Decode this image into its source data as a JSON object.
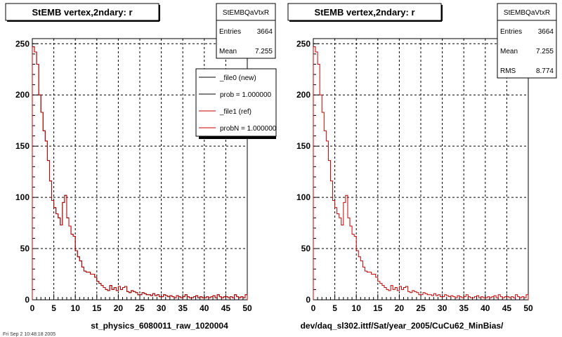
{
  "chart_data": [
    {
      "type": "bar",
      "title": "StEMB  vertex,2ndary: r",
      "xlabel": "st_physics_6080011_raw_1020004",
      "ylabel": "",
      "xlim": [
        0,
        50
      ],
      "ylim": [
        0,
        255
      ],
      "grid": true,
      "x_ticks": [
        "0",
        "5",
        "10",
        "15",
        "20",
        "25",
        "30",
        "35",
        "40",
        "45",
        "50"
      ],
      "y_ticks": [
        "0",
        "50",
        "100",
        "150",
        "200",
        "250"
      ],
      "bin_width": 0.5,
      "stats": {
        "name": "StEMBQaVtxR",
        "rows": [
          {
            "label": "Entries",
            "value": "3664"
          },
          {
            "label": "Mean",
            "value": "7.255"
          }
        ]
      },
      "legend": {
        "placement": "top-right",
        "entries": [
          {
            "label": "_file0 (new)",
            "color": "#000000"
          },
          {
            "label": "prob = 1.000000",
            "color": "#000000"
          },
          {
            "label": "_file1 (ref)",
            "color": "#cc0000"
          },
          {
            "label": "probN = 1.000000",
            "color": "#cc0000"
          }
        ]
      },
      "series": [
        {
          "color": "#000000",
          "values": [
            247,
            242,
            230,
            200,
            183,
            165,
            155,
            136,
            116,
            97,
            90,
            84,
            80,
            73,
            95,
            102,
            80,
            72,
            64,
            62,
            48,
            42,
            38,
            32,
            28,
            27,
            27,
            25,
            25,
            22,
            18,
            16,
            14,
            12,
            10,
            9,
            14,
            10,
            12,
            9,
            13,
            10,
            12,
            13,
            8,
            7,
            9,
            8,
            7,
            5,
            5,
            7,
            6,
            5,
            5,
            4,
            6,
            4,
            5,
            3,
            3,
            5,
            4,
            3,
            4,
            3,
            2,
            4,
            3,
            2,
            3,
            5,
            3,
            2,
            2,
            3,
            4,
            2,
            3,
            2,
            2,
            3,
            2,
            3,
            4,
            2,
            5,
            3,
            2,
            3,
            3,
            2,
            3,
            2,
            5,
            3,
            2,
            3,
            2,
            5
          ]
        },
        {
          "color": "#cc0000",
          "values": [
            247,
            242,
            230,
            200,
            183,
            165,
            155,
            136,
            116,
            97,
            90,
            84,
            80,
            73,
            95,
            102,
            80,
            72,
            64,
            62,
            48,
            42,
            38,
            32,
            28,
            27,
            27,
            25,
            25,
            22,
            18,
            16,
            14,
            12,
            10,
            9,
            14,
            10,
            12,
            9,
            13,
            10,
            12,
            13,
            8,
            7,
            9,
            8,
            7,
            5,
            5,
            7,
            6,
            5,
            5,
            4,
            6,
            4,
            5,
            3,
            3,
            5,
            4,
            3,
            4,
            3,
            2,
            4,
            3,
            2,
            3,
            5,
            3,
            2,
            2,
            3,
            4,
            2,
            3,
            2,
            2,
            3,
            2,
            3,
            4,
            2,
            5,
            3,
            2,
            3,
            3,
            2,
            3,
            2,
            5,
            3,
            2,
            3,
            2,
            5
          ]
        }
      ]
    },
    {
      "type": "bar",
      "title": "StEMB  vertex,2ndary: r",
      "xlabel": "dev/daq_sl302.ittf/Sat/year_2005/CuCu62_MinBias/",
      "ylabel": "",
      "xlim": [
        0,
        50
      ],
      "ylim": [
        0,
        255
      ],
      "grid": true,
      "x_ticks": [
        "0",
        "5",
        "10",
        "15",
        "20",
        "25",
        "30",
        "35",
        "40",
        "45",
        "50"
      ],
      "y_ticks": [
        "0",
        "50",
        "100",
        "150",
        "200",
        "250"
      ],
      "bin_width": 0.5,
      "stats": {
        "name": "StEMBQaVtxR",
        "rows": [
          {
            "label": "Entries",
            "value": "3664"
          },
          {
            "label": "Mean",
            "value": "7.255"
          },
          {
            "label": "RMS",
            "value": "8.774"
          }
        ]
      },
      "series": [
        {
          "color": "#cc0000",
          "values": [
            247,
            242,
            230,
            200,
            183,
            165,
            155,
            136,
            116,
            97,
            90,
            84,
            80,
            73,
            95,
            102,
            80,
            72,
            64,
            62,
            48,
            42,
            38,
            32,
            28,
            27,
            27,
            25,
            25,
            22,
            18,
            16,
            14,
            12,
            10,
            9,
            14,
            10,
            12,
            9,
            13,
            10,
            12,
            13,
            8,
            7,
            9,
            8,
            7,
            5,
            5,
            7,
            6,
            5,
            5,
            4,
            6,
            4,
            5,
            3,
            3,
            5,
            4,
            3,
            4,
            3,
            2,
            4,
            3,
            2,
            3,
            5,
            3,
            2,
            2,
            3,
            4,
            2,
            3,
            2,
            2,
            3,
            2,
            3,
            4,
            2,
            5,
            3,
            2,
            3,
            3,
            2,
            3,
            2,
            5,
            3,
            2,
            3,
            2,
            5
          ]
        }
      ]
    }
  ],
  "footer": "Fri Sep 2 10:48:18 2005"
}
